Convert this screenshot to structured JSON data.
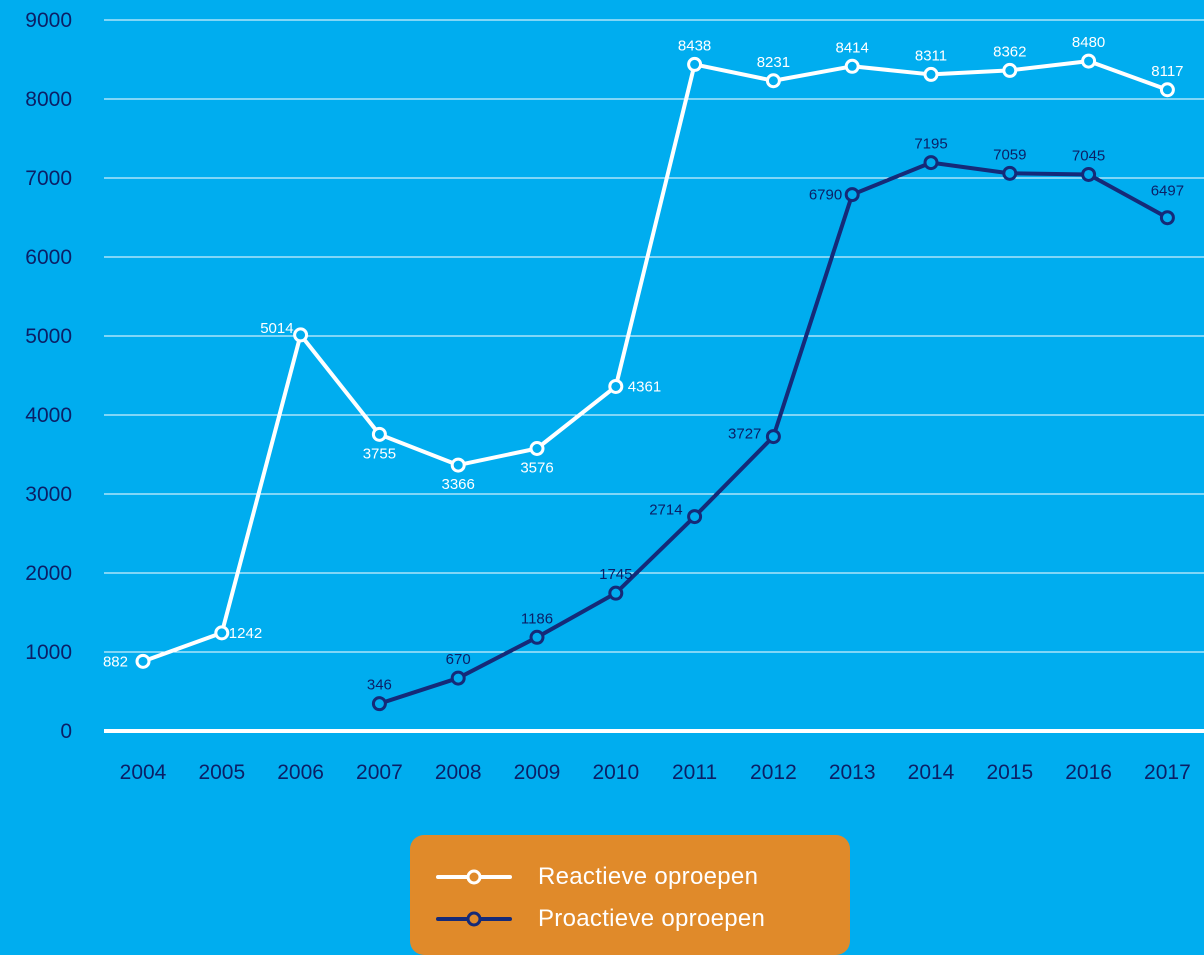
{
  "colors": {
    "background": "#00adef",
    "reactive": "#ffffff",
    "proactive": "#152a78",
    "grid": "#ffffff",
    "axis_text": "#0b1f66",
    "legend_bg": "#e08a2a"
  },
  "chart_data": {
    "type": "line",
    "title": "",
    "xlabel": "",
    "ylabel": "",
    "ylim": [
      0,
      9000
    ],
    "yticks": [
      "0",
      "1000",
      "2000",
      "3000",
      "4000",
      "5000",
      "6000",
      "7000",
      "8000",
      "9000"
    ],
    "categories": [
      "2004",
      "2005",
      "2006",
      "2007",
      "2008",
      "2009",
      "2010",
      "2011",
      "2012",
      "2013",
      "2014",
      "2015",
      "2016",
      "2017"
    ],
    "grid": true,
    "legend_position": "bottom-center",
    "series": [
      {
        "name": "Reactieve oproepen",
        "color": "#ffffff",
        "values": [
          882,
          1242,
          5014,
          3755,
          3366,
          3576,
          4361,
          8438,
          8231,
          8414,
          8311,
          8362,
          8480,
          8117
        ],
        "labels": [
          "882",
          "1242",
          "5014",
          "3755",
          "3366",
          "3576",
          "4361",
          "8438",
          "8231",
          "8414",
          "8311",
          "8362",
          "8480",
          "8117"
        ]
      },
      {
        "name": "Proactieve oproepen",
        "color": "#152a78",
        "values": [
          null,
          null,
          null,
          346,
          670,
          1186,
          1745,
          2714,
          3727,
          6790,
          7195,
          7059,
          7045,
          6497
        ],
        "labels": [
          "",
          "",
          "",
          "346",
          "670",
          "1186",
          "1745",
          "2714",
          "3727",
          "6790",
          "7195",
          "7059",
          "7045",
          "6497"
        ]
      }
    ]
  },
  "legend": {
    "items": [
      {
        "label": "Reactieve oproepen"
      },
      {
        "label": "Proactieve oproepen"
      }
    ]
  }
}
